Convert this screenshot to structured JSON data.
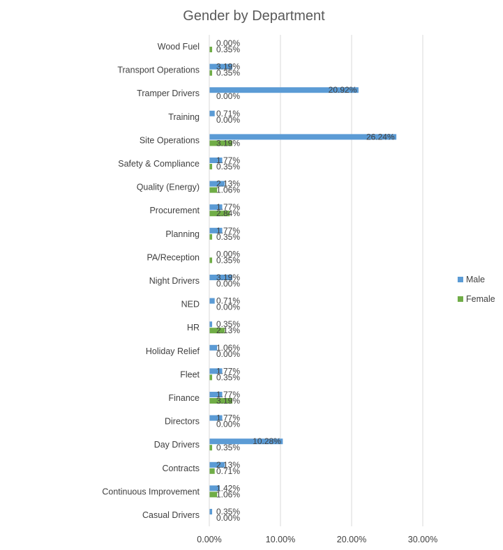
{
  "chart_data": {
    "type": "bar",
    "orientation": "horizontal",
    "title": "Gender by Department",
    "categories": [
      "Wood Fuel",
      "Transport Operations",
      "Tramper Drivers",
      "Training",
      "Site Operations",
      "Safety & Compliance",
      "Quality (Energy)",
      "Procurement",
      "Planning",
      "PA/Reception",
      "Night Drivers",
      "NED",
      "HR",
      "Holiday Relief",
      "Fleet",
      "Finance",
      "Directors",
      "Day Drivers",
      "Contracts",
      "Continuous Improvement",
      "Casual Drivers"
    ],
    "series": [
      {
        "name": "Male",
        "color": "#5b9bd5",
        "values": [
          0.0,
          3.19,
          20.92,
          0.71,
          26.24,
          1.77,
          2.13,
          1.77,
          1.77,
          0.0,
          3.19,
          0.71,
          0.35,
          1.06,
          1.77,
          1.77,
          1.77,
          10.28,
          2.13,
          1.42,
          0.35
        ],
        "labels": [
          "0.00%",
          "3.19%",
          "20.92%",
          "0.71%",
          "26.24%",
          "1.77%",
          "2.13%",
          "1.77%",
          "1.77%",
          "0.00%",
          "3.19%",
          "0.71%",
          "0.35%",
          "1.06%",
          "1.77%",
          "1.77%",
          "1.77%",
          "10.28%",
          "2.13%",
          "1.42%",
          "0.35%"
        ]
      },
      {
        "name": "Female",
        "color": "#70ad47",
        "values": [
          0.35,
          0.35,
          0.0,
          0.0,
          3.19,
          0.35,
          1.06,
          2.84,
          0.35,
          0.35,
          0.0,
          0.0,
          2.13,
          0.0,
          0.35,
          3.19,
          0.0,
          0.35,
          0.71,
          1.06,
          0.0
        ],
        "labels": [
          "0.35%",
          "0.35%",
          "0.00%",
          "0.00%",
          "3.19%",
          "0.35%",
          "1.06%",
          "2.84%",
          "0.35%",
          "0.35%",
          "0.00%",
          "0.00%",
          "2.13%",
          "0.00%",
          "0.35%",
          "3.19%",
          "0.00%",
          "0.35%",
          "0.71%",
          "1.06%",
          "0.00%"
        ]
      }
    ],
    "x_ticks": [
      0,
      10,
      20,
      30
    ],
    "x_tick_labels": [
      "0.00%",
      "10.00%",
      "20.00%",
      "30.00%"
    ],
    "xlim": [
      0,
      30
    ],
    "grid": true,
    "legend_position": "right"
  }
}
